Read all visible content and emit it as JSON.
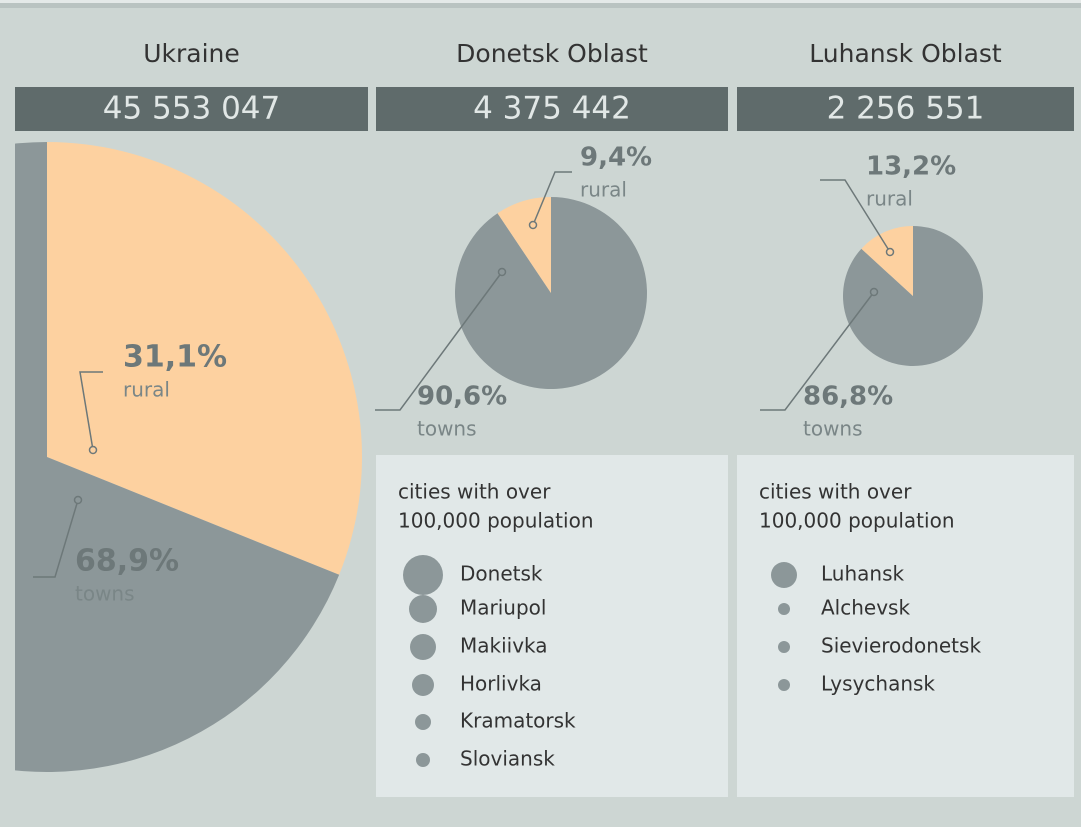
{
  "chart_data": [
    {
      "type": "pie",
      "title": "Ukraine",
      "total": "45 553 047",
      "categories": [
        "rural",
        "towns"
      ],
      "values": [
        31.1,
        68.9
      ],
      "value_labels": [
        "31,1%",
        "68,9%"
      ],
      "colors": [
        "#fdd1a0",
        "#8c9799"
      ]
    },
    {
      "type": "pie",
      "title": "Donetsk Oblast",
      "total": "4 375 442",
      "categories": [
        "towns",
        "rural"
      ],
      "values": [
        90.6,
        9.4
      ],
      "value_labels": [
        "90,6%",
        "9,4%"
      ],
      "colors": [
        "#8c9799",
        "#fdd1a0"
      ],
      "cities_title": [
        "cities with over",
        "100,000 population"
      ],
      "cities": [
        "Donetsk",
        "Mariupol",
        "Makiivka",
        "Horlivka",
        "Kramatorsk",
        "Sloviansk"
      ]
    },
    {
      "type": "pie",
      "title": "Luhansk Oblast",
      "total": "2 256 551",
      "categories": [
        "towns",
        "rural"
      ],
      "values": [
        86.8,
        13.2
      ],
      "value_labels": [
        "86,8%",
        "13,2%"
      ],
      "colors": [
        "#8c9799",
        "#fdd1a0"
      ],
      "cities_title": [
        "cities with over",
        "100,000 population"
      ],
      "cities": [
        "Luhansk",
        "Alchevsk",
        "Sievierodonetsk",
        "Lysychansk"
      ]
    }
  ]
}
